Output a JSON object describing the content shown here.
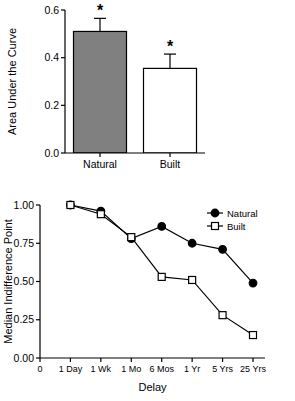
{
  "chart_data": [
    {
      "type": "bar",
      "y_label": "Area Under the Curve",
      "categories": [
        "Natural",
        "Built"
      ],
      "values": [
        0.51,
        0.355
      ],
      "errors": [
        0.055,
        0.06
      ],
      "colors": [
        "#808080",
        "#ffffff"
      ],
      "ylim": [
        0,
        0.6
      ],
      "yticks": [
        {
          "value": 0,
          "label": "0.0"
        },
        0.2,
        0.4,
        0.6
      ],
      "annotations": [
        {
          "text": "*",
          "category": "Natural"
        },
        {
          "text": "*",
          "category": "Built"
        }
      ],
      "grid": false
    },
    {
      "type": "line",
      "x_label": "Delay",
      "y_label": "Median Indifference Point",
      "categories": [
        "0",
        "1 Day",
        "1 Wk",
        "1 Mo",
        "6 Mos",
        "1 Yr",
        "5 Yrs",
        "25 Yrs"
      ],
      "series": [
        {
          "name": "Natural",
          "color": "#000000",
          "marker": "circle",
          "line_style": "solid",
          "values": [
            null,
            1.0,
            0.96,
            0.78,
            0.86,
            0.75,
            0.71,
            0.49
          ]
        },
        {
          "name": "Built",
          "color": "#000000",
          "marker": "open-square",
          "line_style": "solid",
          "values": [
            null,
            1.0,
            0.94,
            0.79,
            0.53,
            0.51,
            0.28,
            0.15
          ]
        }
      ],
      "ylim": [
        0,
        1
      ],
      "yticks": [
        {
          "value": 0,
          "label": "0.00"
        },
        0.25,
        {
          "value": 0.5,
          "label": "0.50"
        },
        0.75,
        {
          "value": 1,
          "label": "1.00"
        }
      ],
      "legend": "top-right",
      "grid": false
    }
  ]
}
